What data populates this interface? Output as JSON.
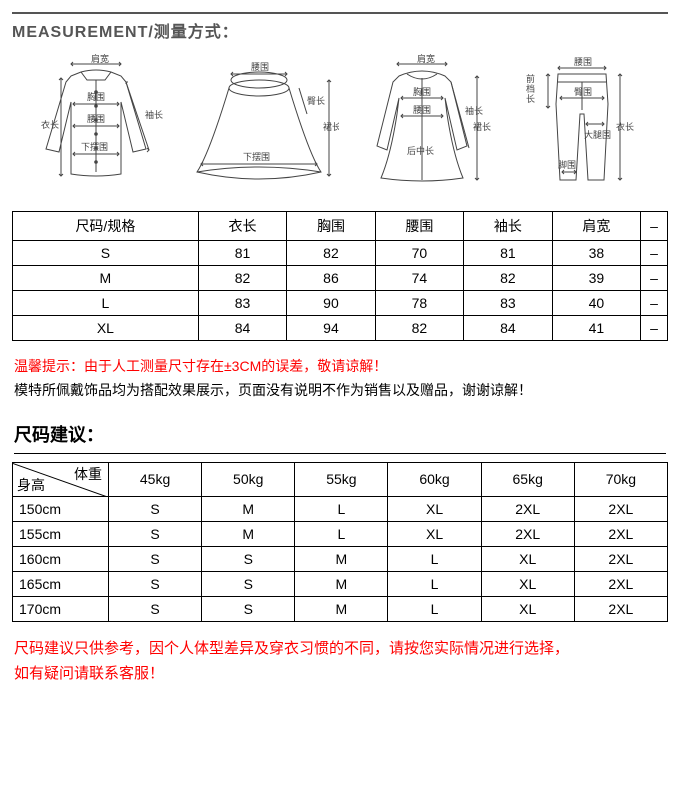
{
  "header": {
    "title": "MEASUREMENT/测量方式："
  },
  "diagrams": {
    "shirt": {
      "shoulder": "肩宽",
      "bust": "胸围",
      "waist": "腰围",
      "hem": "下摆围",
      "sleeve": "袖长",
      "length": "衣长"
    },
    "skirt": {
      "waist": "腰围",
      "hem": "下摆围",
      "length": "裙长",
      "hip": "臀长"
    },
    "dress": {
      "shoulder": "肩宽",
      "bust": "胸围",
      "waist": "腰围",
      "sleeve": "袖长",
      "length": "裙长",
      "mid": "后中长"
    },
    "pants": {
      "waist": "腰围",
      "hip": "臀围",
      "thigh": "大腿围",
      "cuff": "脚围",
      "length": "衣长",
      "rise": "前档长"
    }
  },
  "size_table": {
    "columns": [
      "尺码/规格",
      "衣长",
      "胸围",
      "腰围",
      "袖长",
      "肩宽",
      "–"
    ],
    "rows": [
      [
        "S",
        "81",
        "82",
        "70",
        "81",
        "38",
        "–"
      ],
      [
        "M",
        "82",
        "86",
        "74",
        "82",
        "39",
        "–"
      ],
      [
        "L",
        "83",
        "90",
        "78",
        "83",
        "40",
        "–"
      ],
      [
        "XL",
        "84",
        "94",
        "82",
        "84",
        "41",
        "–"
      ]
    ]
  },
  "notice1": {
    "line1": "温馨提示：由于人工测量尺寸存在±3CM的误差，敬请谅解！",
    "line2": "模特所佩戴饰品均为搭配效果展示，页面没有说明不作为销售以及赠品，谢谢谅解！"
  },
  "rec_section": {
    "title": "尺码建议："
  },
  "rec_table": {
    "corner": {
      "top": "体重",
      "bottom": "身高"
    },
    "weights": [
      "45kg",
      "50kg",
      "55kg",
      "60kg",
      "65kg",
      "70kg"
    ],
    "heights": [
      "150cm",
      "155cm",
      "160cm",
      "165cm",
      "170cm"
    ],
    "cells": [
      [
        "S",
        "M",
        "L",
        "XL",
        "2XL",
        "2XL"
      ],
      [
        "S",
        "M",
        "L",
        "XL",
        "2XL",
        "2XL"
      ],
      [
        "S",
        "S",
        "M",
        "L",
        "XL",
        "2XL"
      ],
      [
        "S",
        "S",
        "M",
        "L",
        "XL",
        "2XL"
      ],
      [
        "S",
        "S",
        "M",
        "L",
        "XL",
        "2XL"
      ]
    ]
  },
  "notice2": {
    "line1": "尺码建议只供参考，因个人体型差异及穿衣习惯的不同，请按您实际情况进行选择，",
    "line2": "如有疑问请联系客服！"
  },
  "colors": {
    "red": "#ff0000",
    "text": "#000000",
    "header_gray": "#555555"
  }
}
